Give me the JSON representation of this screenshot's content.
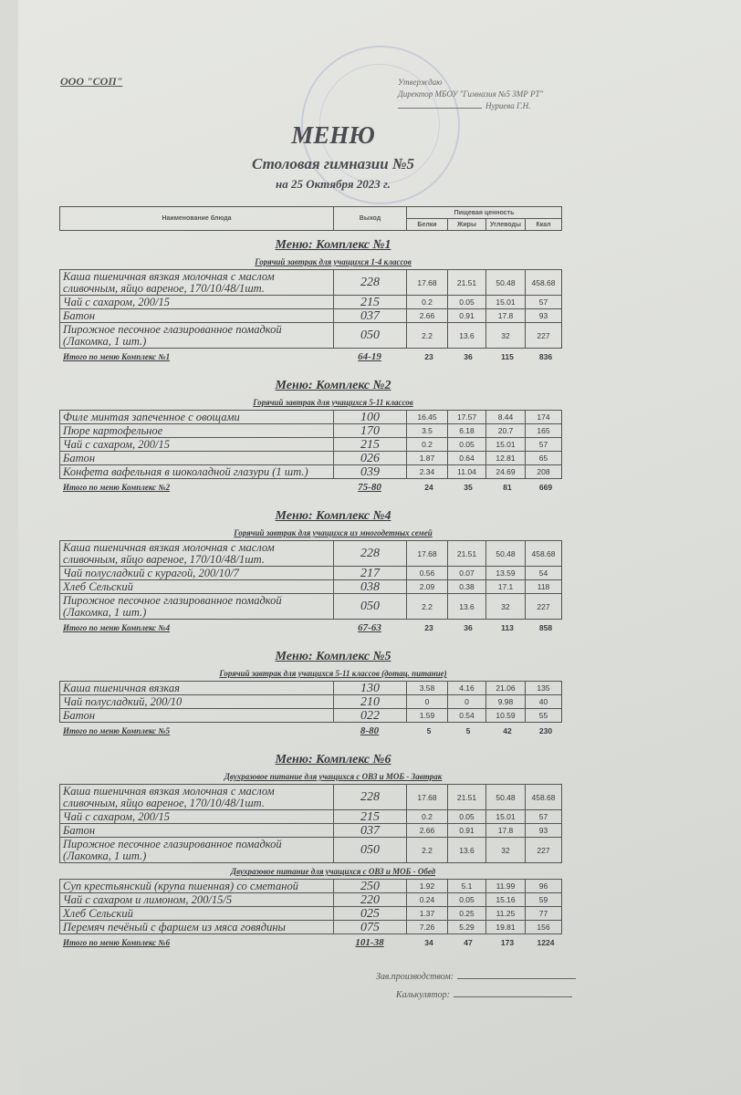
{
  "header": {
    "organization": "ООО \"СОП\"",
    "approval": [
      "Утверждаю",
      "Директор МБОУ \"Гимназия №5 ЗМР РТ\"",
      "Нуриева Г.Н."
    ],
    "title": "МЕНЮ",
    "subtitle": "Столовая гимназии №5",
    "date": "на 25 Октября 2023 г."
  },
  "columns": {
    "name": "Наименование блюда",
    "yield": "Выход",
    "nutrition": "Пищевая ценность",
    "protein": "Белки",
    "fat": "Жиры",
    "carbs": "Углеводы",
    "kcal": "Ккал"
  },
  "sections": [
    {
      "title": "Меню: Комплекс №1",
      "groups": [
        {
          "subtitle": "Горячий завтрак для учащихся 1-4 классов",
          "rows": [
            [
              "Каша пшеничная вязкая молочная с маслом сливочным, яйцо вареное, 170/10/48/1шт.",
              "228",
              "17.68",
              "21.51",
              "50.48",
              "458.68"
            ],
            [
              "Чай с сахаром, 200/15",
              "215",
              "0.2",
              "0.05",
              "15.01",
              "57"
            ],
            [
              "Батон",
              "037",
              "2.66",
              "0.91",
              "17.8",
              "93"
            ],
            [
              "Пирожное песочное глазированное помадкой (Лакомка, 1 шт.)",
              "050",
              "2.2",
              "13.6",
              "32",
              "227"
            ]
          ]
        }
      ],
      "total": [
        "Итого по меню Комплекс №1",
        "64-19",
        "23",
        "36",
        "115",
        "836"
      ]
    },
    {
      "title": "Меню: Комплекс №2",
      "groups": [
        {
          "subtitle": "Горячий завтрак для учащихся 5-11 классов",
          "rows": [
            [
              "Филе минтая запеченное с овощами",
              "100",
              "16.45",
              "17.57",
              "8.44",
              "174"
            ],
            [
              "Пюре картофельное",
              "170",
              "3.5",
              "6.18",
              "20.7",
              "165"
            ],
            [
              "Чай с сахаром, 200/15",
              "215",
              "0.2",
              "0.05",
              "15.01",
              "57"
            ],
            [
              "Батон",
              "026",
              "1.87",
              "0.64",
              "12.81",
              "65"
            ],
            [
              "Конфета вафельная в шоколадной глазури (1 шт.)",
              "039",
              "2.34",
              "11.04",
              "24.69",
              "208"
            ]
          ]
        }
      ],
      "total": [
        "Итого по меню Комплекс №2",
        "75-80",
        "24",
        "35",
        "81",
        "669"
      ]
    },
    {
      "title": "Меню: Комплекс №4",
      "groups": [
        {
          "subtitle": "Горячий завтрак для учащихся из многодетных семей",
          "rows": [
            [
              "Каша пшеничная вязкая молочная с маслом сливочным, яйцо вареное, 170/10/48/1шт.",
              "228",
              "17.68",
              "21.51",
              "50.48",
              "458.68"
            ],
            [
              "Чай полусладкий с курагой, 200/10/7",
              "217",
              "0.56",
              "0.07",
              "13.59",
              "54"
            ],
            [
              "Хлеб Сельский",
              "038",
              "2.09",
              "0.38",
              "17.1",
              "118"
            ],
            [
              "Пирожное песочное глазированное помадкой (Лакомка, 1 шт.)",
              "050",
              "2.2",
              "13.6",
              "32",
              "227"
            ]
          ]
        }
      ],
      "total": [
        "Итого по меню Комплекс №4",
        "67-63",
        "23",
        "36",
        "113",
        "858"
      ]
    },
    {
      "title": "Меню: Комплекс №5",
      "groups": [
        {
          "subtitle": "Горячий завтрак для учащихся 5-11 классов (дотац. питание)",
          "rows": [
            [
              "Каша пшеничная вязкая",
              "130",
              "3.58",
              "4.16",
              "21.06",
              "135"
            ],
            [
              "Чай полусладкий, 200/10",
              "210",
              "0",
              "0",
              "9.98",
              "40"
            ],
            [
              "Батон",
              "022",
              "1.59",
              "0.54",
              "10.59",
              "55"
            ]
          ]
        }
      ],
      "total": [
        "Итого по меню Комплекс №5",
        "8-80",
        "5",
        "5",
        "42",
        "230"
      ]
    },
    {
      "title": "Меню: Комплекс №6",
      "groups": [
        {
          "subtitle": "Двухразовое питание для учащихся с ОВЗ и МОБ - Завтрак",
          "rows": [
            [
              "Каша пшеничная вязкая молочная с маслом сливочным, яйцо вареное, 170/10/48/1шт.",
              "228",
              "17.68",
              "21.51",
              "50.48",
              "458.68"
            ],
            [
              "Чай с сахаром, 200/15",
              "215",
              "0.2",
              "0.05",
              "15.01",
              "57"
            ],
            [
              "Батон",
              "037",
              "2.66",
              "0.91",
              "17.8",
              "93"
            ],
            [
              "Пирожное песочное глазированное помадкой (Лакомка, 1 шт.)",
              "050",
              "2.2",
              "13.6",
              "32",
              "227"
            ]
          ]
        },
        {
          "subtitle": "Двухразовое питание для учащихся с ОВЗ и МОБ - Обед",
          "rows": [
            [
              "Суп крестьянский (крупа пшенная) со сметаной",
              "250",
              "1.92",
              "5.1",
              "11.99",
              "96"
            ],
            [
              "Чай с сахаром и лимоном, 200/15/5",
              "220",
              "0.24",
              "0.05",
              "15.16",
              "59"
            ],
            [
              "Хлеб Сельский",
              "025",
              "1.37",
              "0.25",
              "11.25",
              "77"
            ],
            [
              "Перемяч печёный с фаршем из мяса говядины",
              "075",
              "7.26",
              "5.29",
              "19.81",
              "156"
            ]
          ]
        }
      ],
      "total": [
        "Итого по меню Комплекс №6",
        "101-38",
        "34",
        "47",
        "173",
        "1224"
      ]
    }
  ],
  "signatures": {
    "production_head": "Зав.производством:",
    "calculator": "Калькулятор:"
  }
}
